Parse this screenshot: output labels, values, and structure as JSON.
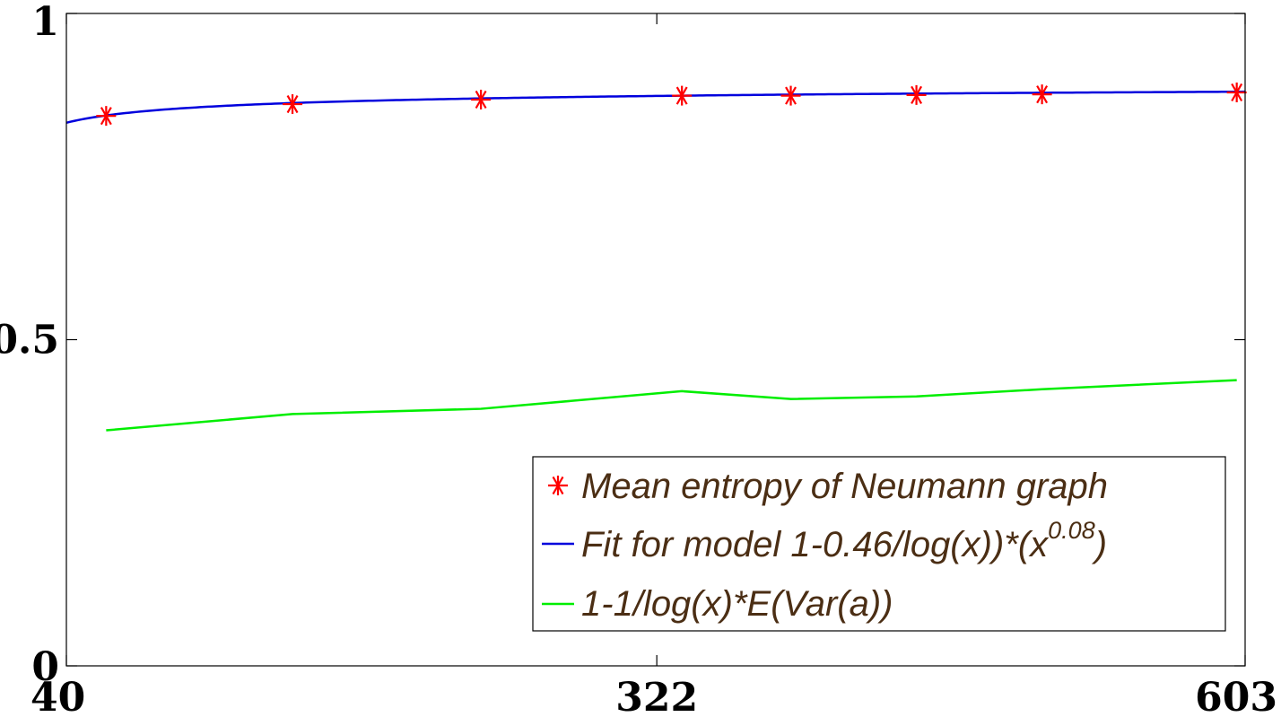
{
  "chart_data": {
    "type": "line",
    "title": "",
    "xlabel": "",
    "ylabel": "",
    "xlim": [
      40,
      603
    ],
    "ylim": [
      0,
      1
    ],
    "x_ticks": [
      {
        "value": 40,
        "label": "40"
      },
      {
        "value": 322,
        "label": "322"
      },
      {
        "value": 603,
        "label": "603"
      }
    ],
    "y_ticks": [
      {
        "value": 0,
        "label": "0"
      },
      {
        "value": 0.5,
        "label": "0.5"
      },
      {
        "value": 1,
        "label": "1"
      }
    ],
    "grid": false,
    "legend_position": "bottom-right",
    "series": [
      {
        "name": "Mean entropy of Neumann graph",
        "style": "markers",
        "marker": "asterisk",
        "color": "#ff0000",
        "x": [
          59,
          148,
          238,
          334,
          386,
          446,
          506,
          599
        ],
        "y": [
          0.843,
          0.861,
          0.868,
          0.874,
          0.874,
          0.875,
          0.876,
          0.879
        ]
      },
      {
        "name": "Fit for model 1-0.46/log(x))*(x",
        "name_superscript": "0.08",
        "name_suffix": ")",
        "style": "line",
        "color": "#0000dd",
        "fit_model": {
          "a": 0.46,
          "b": 0.08
        }
      },
      {
        "name": "1-1/log(x)*E(Var(a))",
        "style": "line",
        "color": "#00ee00",
        "x": [
          59,
          148,
          238,
          334,
          386,
          446,
          506,
          599
        ],
        "y": [
          0.361,
          0.386,
          0.394,
          0.421,
          0.409,
          0.413,
          0.424,
          0.438
        ]
      }
    ]
  }
}
